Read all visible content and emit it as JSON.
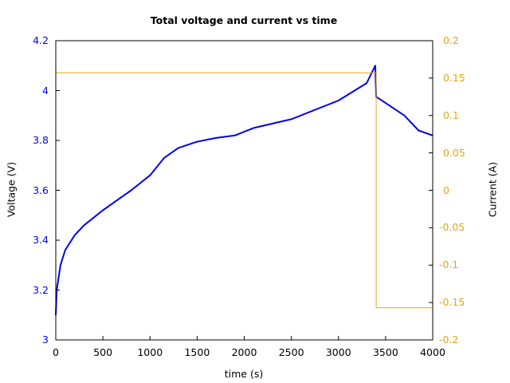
{
  "chart_data": {
    "type": "line",
    "title": "Total voltage and current vs time",
    "xlabel": "time (s)",
    "ylabel": "Voltage (V)",
    "y2label": "Current (A)",
    "xlim": [
      0,
      4000
    ],
    "ylim": [
      3,
      4.2
    ],
    "y2lim": [
      -0.2,
      0.2
    ],
    "x_ticks": [
      "0",
      "500",
      "1000",
      "1500",
      "2000",
      "2500",
      "3000",
      "3500",
      "4000"
    ],
    "y_ticks": [
      "3",
      "3.2",
      "3.4",
      "3.6",
      "3.8",
      "4",
      "4.2"
    ],
    "y2_ticks": [
      "-0.2",
      "-0.15",
      "-0.1",
      "-0.05",
      "0",
      "0.05",
      "0.1",
      "0.15",
      "0.2"
    ],
    "grid": false,
    "legend": null,
    "series": [
      {
        "name": "Voltage",
        "axis": "left",
        "color": "#0000ee",
        "x": [
          0,
          10,
          50,
          100,
          200,
          300,
          500,
          800,
          1000,
          1150,
          1300,
          1500,
          1700,
          1900,
          2000,
          2100,
          2500,
          3000,
          3300,
          3390,
          3400,
          3500,
          3700,
          3850,
          4000
        ],
        "values": [
          3.1,
          3.2,
          3.3,
          3.36,
          3.42,
          3.46,
          3.52,
          3.6,
          3.66,
          3.73,
          3.77,
          3.795,
          3.81,
          3.82,
          3.835,
          3.85,
          3.885,
          3.96,
          4.03,
          4.1,
          3.975,
          3.95,
          3.9,
          3.84,
          3.82
        ]
      },
      {
        "name": "Current",
        "axis": "right",
        "color": "#e8a317",
        "x": [
          0,
          3400,
          3400,
          4000
        ],
        "values": [
          0.157,
          0.157,
          -0.157,
          -0.157
        ]
      }
    ]
  },
  "colors": {
    "voltage_axis": "#0000ee",
    "current_axis": "#e8a317",
    "axis": "#000000"
  }
}
